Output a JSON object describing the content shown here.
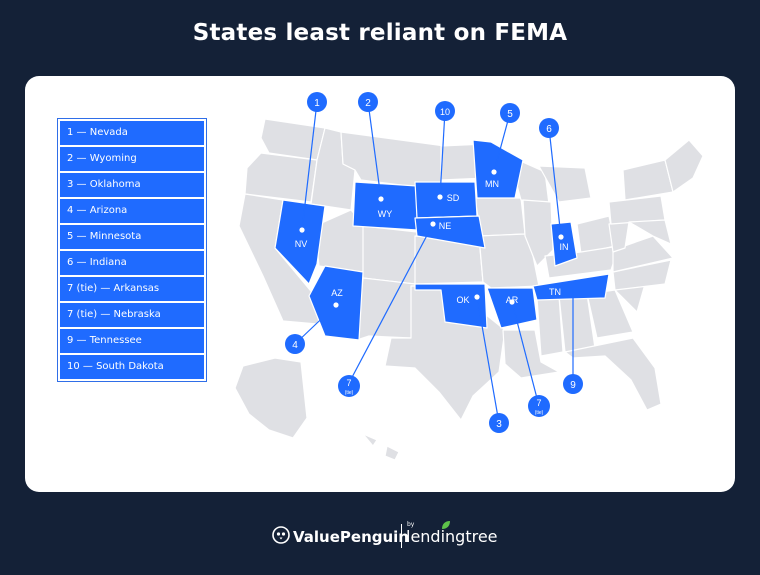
{
  "title": "States least reliant on FEMA",
  "colors": {
    "background": "#142137",
    "highlight": "#1f6bff",
    "state_gray": "#dfe0e4",
    "state_border": "#ffffff"
  },
  "legend": [
    "1 — Nevada",
    "2 — Wyoming",
    "3 — Oklahoma",
    "4 — Arizona",
    "5 — Minnesota",
    "6 — Indiana",
    "7 (tie) — Arkansas",
    "7 (tie) — Nebraska",
    "9 — Tennessee",
    "10 — South Dakota"
  ],
  "highlighted_states": [
    {
      "abbr": "NV",
      "rank": "1"
    },
    {
      "abbr": "WY",
      "rank": "2"
    },
    {
      "abbr": "OK",
      "rank": "3"
    },
    {
      "abbr": "AZ",
      "rank": "4"
    },
    {
      "abbr": "MN",
      "rank": "5"
    },
    {
      "abbr": "IN",
      "rank": "6"
    },
    {
      "abbr": "AR",
      "rank": "7",
      "note": "(tie)"
    },
    {
      "abbr": "NE",
      "rank": "7",
      "note": "(tie)"
    },
    {
      "abbr": "TN",
      "rank": "9"
    },
    {
      "abbr": "SD",
      "rank": "10"
    }
  ],
  "footer": {
    "brand": "ValuePenguin",
    "by": "by",
    "partner": "lendingtree"
  }
}
